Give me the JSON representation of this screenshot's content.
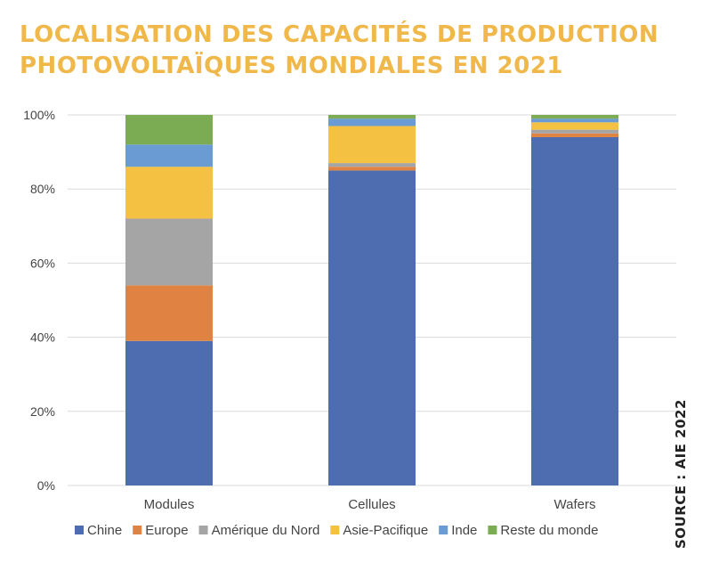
{
  "title_lines": [
    "LOCALISATION DES CAPACITÉS DE PRODUCTION",
    "PHOTOVOLTAÏQUES MONDIALES EN 2021"
  ],
  "source": "SOURCE : AIE 2022",
  "colors": {
    "title": "#f0b84a",
    "grid": "#d9d9d9",
    "text": "#444444"
  },
  "chart_data": {
    "type": "bar",
    "stacked": true,
    "categories": [
      "Modules",
      "Cellules",
      "Wafers"
    ],
    "y_ticks": [
      "0%",
      "20%",
      "40%",
      "60%",
      "80%",
      "100%"
    ],
    "ylim": [
      0,
      100
    ],
    "grid": true,
    "legend_position": "bottom",
    "series": [
      {
        "name": "Chine",
        "color": "#4e6cb0",
        "values": [
          39,
          85,
          94
        ]
      },
      {
        "name": "Europe",
        "color": "#e08242",
        "values": [
          15,
          1,
          1
        ]
      },
      {
        "name": "Amérique du Nord",
        "color": "#a5a5a5",
        "values": [
          18,
          1,
          1
        ]
      },
      {
        "name": "Asie-Pacifique",
        "color": "#f4c143",
        "values": [
          14,
          10,
          2
        ]
      },
      {
        "name": "Inde",
        "color": "#6a9bd3",
        "values": [
          6,
          2,
          1
        ]
      },
      {
        "name": "Reste du monde",
        "color": "#7bab53",
        "values": [
          8,
          1,
          1
        ]
      }
    ]
  }
}
